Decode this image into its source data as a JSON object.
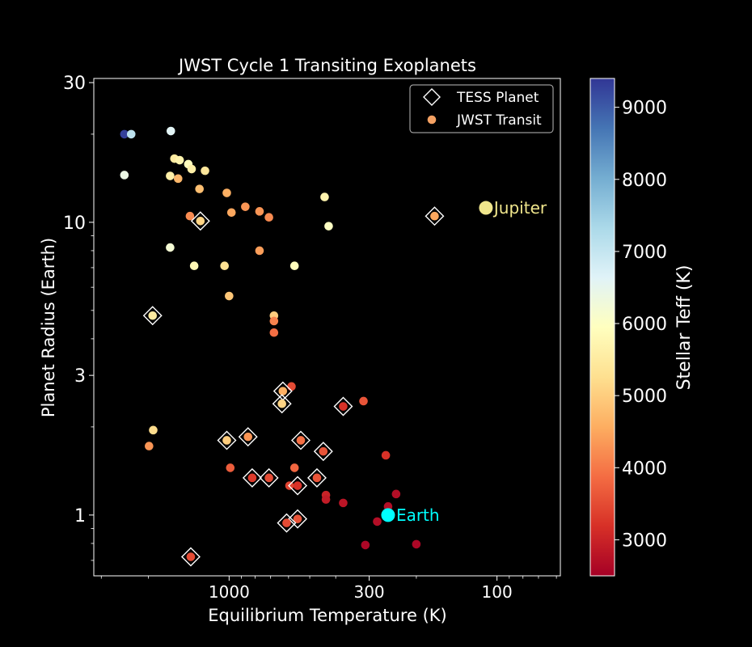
{
  "chart_data": {
    "type": "scatter",
    "title": "JWST Cycle 1 Transiting Exoplanets",
    "xlabel": "Equilibrium Temperature (K)",
    "ylabel": "Planet Radius (Earth)",
    "x_scale": "log-reversed",
    "y_scale": "log",
    "xlim": [
      3200,
      58
    ],
    "ylim": [
      0.62,
      31
    ],
    "x_ticks": [
      1000,
      300,
      100
    ],
    "x_tick_labels": [
      "1000",
      "300",
      "100"
    ],
    "y_ticks": [
      1,
      3,
      10,
      30
    ],
    "y_tick_labels": [
      "1",
      "3",
      "10",
      "30"
    ],
    "legend": {
      "placement": "top-right",
      "entries": [
        {
          "label": "TESS Planet",
          "marker": "diamond"
        },
        {
          "label": "JWST Transit",
          "marker": "circle",
          "color": "#f4a163"
        }
      ]
    },
    "colorbar": {
      "label": "Stellar Teff (K)",
      "range": [
        2500,
        9400
      ],
      "ticks": [
        3000,
        4000,
        5000,
        6000,
        7000,
        8000,
        9000
      ],
      "tick_labels": [
        "3000",
        "4000",
        "5000",
        "6000",
        "7000",
        "8000",
        "9000"
      ],
      "colormap": [
        "#a50026",
        "#d73027",
        "#f46d43",
        "#fdae61",
        "#fee090",
        "#ffffbf",
        "#e0f3f8",
        "#abd9e9",
        "#74add1",
        "#4575b4",
        "#313695"
      ]
    },
    "annotations": [
      {
        "label": "Jupiter",
        "teq": 110,
        "radius": 11.2,
        "color": "#f0e68c"
      },
      {
        "label": "Earth",
        "teq": 255,
        "radius": 1.0,
        "color": "#00ffff"
      }
    ],
    "series": [
      {
        "points": [
          {
            "teq": 2460,
            "radius": 20.0,
            "teff": 9300
          },
          {
            "teq": 2320,
            "radius": 20.0,
            "teff": 7100
          },
          {
            "teq": 1650,
            "radius": 20.5,
            "teff": 6600
          },
          {
            "teq": 2460,
            "radius": 14.5,
            "teff": 6400
          },
          {
            "teq": 1600,
            "radius": 16.5,
            "teff": 5500
          },
          {
            "teq": 1530,
            "radius": 16.3,
            "teff": 5700
          },
          {
            "teq": 1420,
            "radius": 15.8,
            "teff": 5900
          },
          {
            "teq": 1380,
            "radius": 15.2,
            "teff": 5600
          },
          {
            "teq": 1230,
            "radius": 15.0,
            "teff": 5400
          },
          {
            "teq": 1660,
            "radius": 14.4,
            "teff": 5600
          },
          {
            "teq": 1550,
            "radius": 14.1,
            "teff": 4700
          },
          {
            "teq": 1290,
            "radius": 13.0,
            "teff": 4800
          },
          {
            "teq": 1020,
            "radius": 12.6,
            "teff": 4600
          },
          {
            "teq": 870,
            "radius": 11.3,
            "teff": 4300
          },
          {
            "teq": 770,
            "radius": 10.9,
            "teff": 4300
          },
          {
            "teq": 710,
            "radius": 10.4,
            "teff": 4200
          },
          {
            "teq": 1400,
            "radius": 10.5,
            "teff": 4200
          },
          {
            "teq": 980,
            "radius": 10.8,
            "teff": 4500
          },
          {
            "teq": 1280,
            "radius": 10.1,
            "teff": 5100,
            "tess": true
          },
          {
            "teq": 440,
            "radius": 12.2,
            "teff": 5700
          },
          {
            "teq": 425,
            "radius": 9.7,
            "teff": 6000
          },
          {
            "teq": 171,
            "radius": 10.5,
            "teff": 4500,
            "tess": true
          },
          {
            "teq": 1660,
            "radius": 8.2,
            "teff": 6200
          },
          {
            "teq": 770,
            "radius": 8.0,
            "teff": 4400
          },
          {
            "teq": 1350,
            "radius": 7.1,
            "teff": 5800
          },
          {
            "teq": 1040,
            "radius": 7.1,
            "teff": 5300
          },
          {
            "teq": 570,
            "radius": 7.1,
            "teff": 5900
          },
          {
            "teq": 1000,
            "radius": 5.6,
            "teff": 4900
          },
          {
            "teq": 1930,
            "radius": 4.8,
            "teff": 5500,
            "tess": true
          },
          {
            "teq": 680,
            "radius": 4.8,
            "teff": 5000
          },
          {
            "teq": 680,
            "radius": 4.6,
            "teff": 4100
          },
          {
            "teq": 680,
            "radius": 4.2,
            "teff": 3900
          },
          {
            "teq": 585,
            "radius": 2.75,
            "teff": 3500
          },
          {
            "teq": 630,
            "radius": 2.65,
            "teff": 4600,
            "tess": true
          },
          {
            "teq": 635,
            "radius": 2.4,
            "teff": 5100,
            "tess": true
          },
          {
            "teq": 375,
            "radius": 2.35,
            "teff": 3200,
            "tess": true
          },
          {
            "teq": 315,
            "radius": 2.45,
            "teff": 3600
          },
          {
            "teq": 1920,
            "radius": 1.95,
            "teff": 5200
          },
          {
            "teq": 1990,
            "radius": 1.72,
            "teff": 4300
          },
          {
            "teq": 1020,
            "radius": 1.8,
            "teff": 5000,
            "tess": true
          },
          {
            "teq": 850,
            "radius": 1.85,
            "teff": 4300,
            "tess": true
          },
          {
            "teq": 540,
            "radius": 1.8,
            "teff": 3900,
            "tess": true
          },
          {
            "teq": 445,
            "radius": 1.65,
            "teff": 3600,
            "tess": true
          },
          {
            "teq": 260,
            "radius": 1.6,
            "teff": 3200
          },
          {
            "teq": 990,
            "radius": 1.45,
            "teff": 3700
          },
          {
            "teq": 820,
            "radius": 1.34,
            "teff": 3300,
            "tess": true
          },
          {
            "teq": 710,
            "radius": 1.34,
            "teff": 3500,
            "tess": true
          },
          {
            "teq": 570,
            "radius": 1.45,
            "teff": 3800
          },
          {
            "teq": 470,
            "radius": 1.34,
            "teff": 3600,
            "tess": true
          },
          {
            "teq": 595,
            "radius": 1.26,
            "teff": 3400
          },
          {
            "teq": 555,
            "radius": 1.26,
            "teff": 3200,
            "tess": true
          },
          {
            "teq": 435,
            "radius": 1.17,
            "teff": 3000
          },
          {
            "teq": 435,
            "radius": 1.13,
            "teff": 2900
          },
          {
            "teq": 375,
            "radius": 1.1,
            "teff": 2800
          },
          {
            "teq": 238,
            "radius": 1.18,
            "teff": 2700
          },
          {
            "teq": 255,
            "radius": 1.07,
            "teff": 2700
          },
          {
            "teq": 555,
            "radius": 0.97,
            "teff": 3600,
            "tess": true
          },
          {
            "teq": 610,
            "radius": 0.94,
            "teff": 3500,
            "tess": true
          },
          {
            "teq": 280,
            "radius": 0.95,
            "teff": 2700
          },
          {
            "teq": 310,
            "radius": 0.79,
            "teff": 2600
          },
          {
            "teq": 200,
            "radius": 0.795,
            "teff": 2600
          },
          {
            "teq": 1390,
            "radius": 0.72,
            "teff": 3500,
            "tess": true
          }
        ]
      }
    ]
  }
}
